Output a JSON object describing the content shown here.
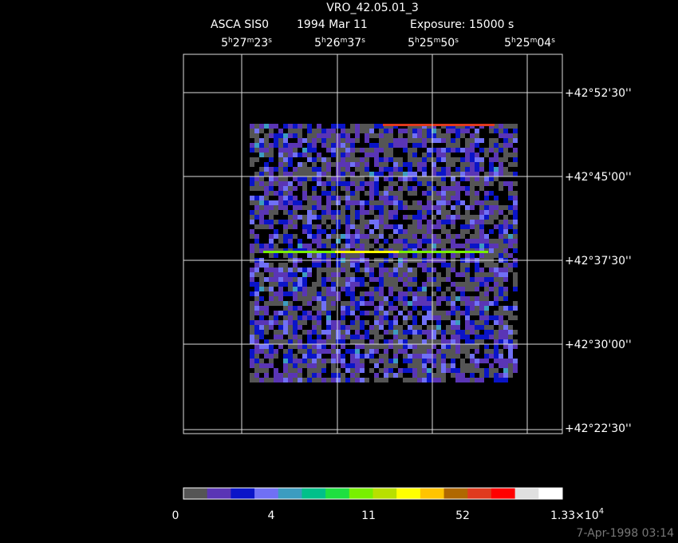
{
  "header": {
    "title": "VRO_42.05.01_3",
    "instrument": "ASCA SIS0",
    "date": "1994 Mar 11",
    "exposure": "Exposure: 15000 s"
  },
  "ra_labels": [
    [
      "5",
      "h",
      "27",
      "m",
      "23",
      "s"
    ],
    [
      "5",
      "h",
      "26",
      "m",
      "37",
      "s"
    ],
    [
      "5",
      "h",
      "25",
      "m",
      "50",
      "s"
    ],
    [
      "5",
      "h",
      "25",
      "m",
      "04",
      "s"
    ]
  ],
  "dec_labels": [
    "+42°52'30''",
    "+42°45'00''",
    "+42°37'30''",
    "+42°30'00''",
    "+42°22'30''"
  ],
  "colorbar": {
    "colors": [
      "#555555",
      "#5a35b5",
      "#0a14c8",
      "#7070f5",
      "#3c9cc0",
      "#00c08a",
      "#1ee040",
      "#78f000",
      "#b8e000",
      "#ffff00",
      "#ffc400",
      "#b06800",
      "#e03a1e",
      "#ff0000",
      "#e0e0e0",
      "#ffffff"
    ],
    "labels": [
      "0",
      "4",
      "11",
      "52"
    ],
    "max_label": {
      "mantissa": "1.33×10",
      "exponent": "4"
    }
  },
  "timestamp": "7-Apr-1998 03:14"
}
